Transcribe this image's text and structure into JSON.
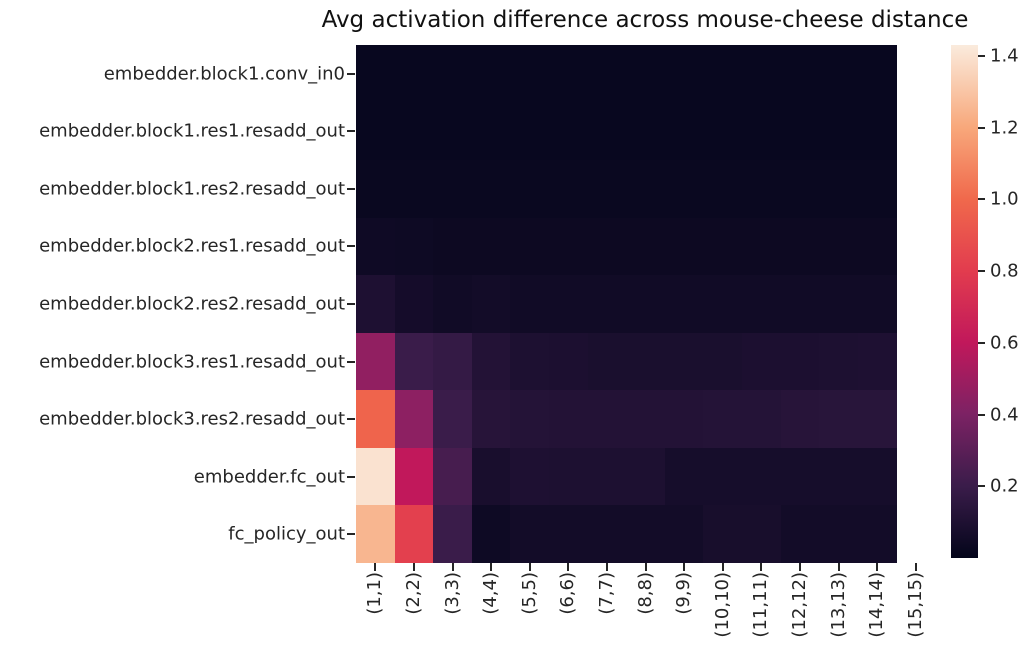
{
  "figure": {
    "background": "#ffffff",
    "text_color": "#262626"
  },
  "chart_data": {
    "type": "heatmap",
    "title": "Avg activation difference across mouse-cheese distance",
    "rows": [
      "embedder.block1.conv_in0",
      "embedder.block1.res1.resadd_out",
      "embedder.block1.res2.resadd_out",
      "embedder.block2.res1.resadd_out",
      "embedder.block2.res2.resadd_out",
      "embedder.block3.res1.resadd_out",
      "embedder.block3.res2.resadd_out",
      "embedder.fc_out",
      "fc_policy_out"
    ],
    "columns": [
      "(1,1)",
      "(2,2)",
      "(3,3)",
      "(4,4)",
      "(5,5)",
      "(6,6)",
      "(7,7)",
      "(8,8)",
      "(9,9)",
      "(10,10)",
      "(11,11)",
      "(12,12)",
      "(13,13)",
      "(14,14)",
      "(15,15)"
    ],
    "values": [
      [
        0.02,
        0.02,
        0.02,
        0.02,
        0.02,
        0.02,
        0.02,
        0.02,
        0.02,
        0.02,
        0.02,
        0.02,
        0.02,
        0.02,
        null
      ],
      [
        0.02,
        0.02,
        0.02,
        0.02,
        0.02,
        0.02,
        0.02,
        0.02,
        0.02,
        0.02,
        0.02,
        0.02,
        0.02,
        0.02,
        null
      ],
      [
        0.025,
        0.025,
        0.025,
        0.025,
        0.025,
        0.025,
        0.025,
        0.025,
        0.025,
        0.025,
        0.025,
        0.025,
        0.025,
        0.025,
        null
      ],
      [
        0.045,
        0.04,
        0.035,
        0.035,
        0.035,
        0.035,
        0.035,
        0.035,
        0.035,
        0.035,
        0.035,
        0.035,
        0.035,
        0.035,
        null
      ],
      [
        0.1,
        0.065,
        0.05,
        0.06,
        0.05,
        0.05,
        0.05,
        0.05,
        0.05,
        0.05,
        0.05,
        0.05,
        0.05,
        0.05,
        null
      ],
      [
        0.46,
        0.2,
        0.18,
        0.115,
        0.095,
        0.09,
        0.085,
        0.085,
        0.085,
        0.085,
        0.09,
        0.09,
        0.095,
        0.1,
        null
      ],
      [
        0.98,
        0.45,
        0.2,
        0.13,
        0.12,
        0.115,
        0.115,
        0.115,
        0.115,
        0.12,
        0.12,
        0.13,
        0.135,
        0.135,
        null
      ],
      [
        1.4,
        0.6,
        0.24,
        0.08,
        0.1,
        0.095,
        0.095,
        0.095,
        0.07,
        0.07,
        0.07,
        0.07,
        0.07,
        0.07,
        null
      ],
      [
        1.25,
        0.82,
        0.2,
        0.04,
        0.06,
        0.06,
        0.06,
        0.06,
        0.06,
        0.075,
        0.075,
        0.06,
        0.06,
        0.06,
        null
      ]
    ],
    "vmin": 0.0,
    "vmax": 1.43,
    "grid": false,
    "colormap": "rocket",
    "colormap_anchors": [
      {
        "t": 0.0,
        "color": "#03051A"
      },
      {
        "t": 0.14,
        "color": "#3A1C4A"
      },
      {
        "t": 0.28,
        "color": "#7C2264"
      },
      {
        "t": 0.42,
        "color": "#C1185B"
      },
      {
        "t": 0.56,
        "color": "#E23C4E"
      },
      {
        "t": 0.7,
        "color": "#F0694C"
      },
      {
        "t": 0.84,
        "color": "#F8A87B"
      },
      {
        "t": 1.0,
        "color": "#FAEBDD"
      }
    ],
    "colorbar": {
      "position": "right",
      "ticks": [
        0.2,
        0.4,
        0.6,
        0.8,
        1.0,
        1.2,
        1.4
      ]
    }
  }
}
